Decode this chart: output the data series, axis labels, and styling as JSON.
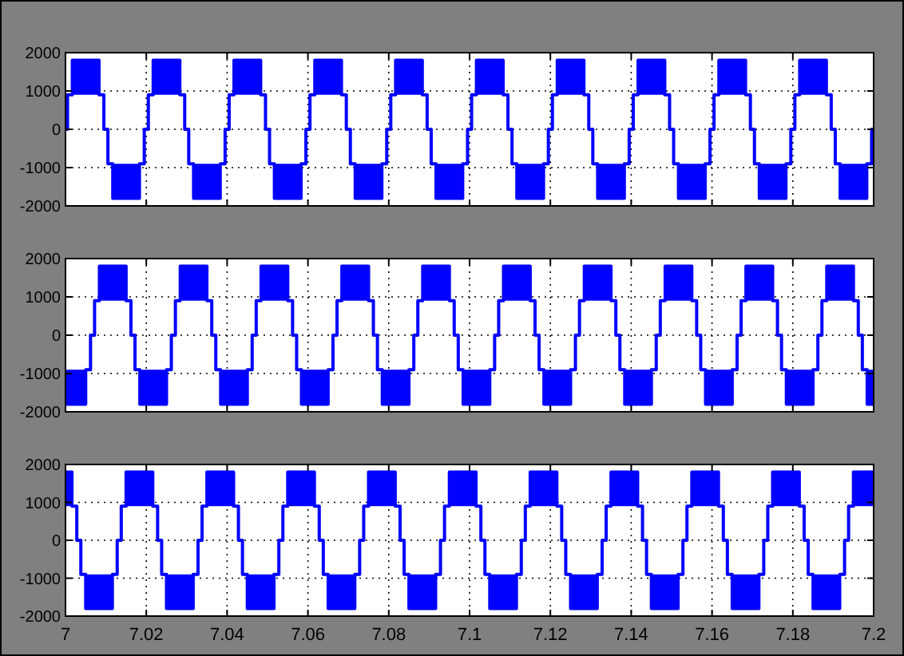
{
  "chart_data": [
    {
      "type": "step",
      "xlim": [
        7,
        7.2
      ],
      "xticks": [
        7,
        7.02,
        7.04,
        7.06,
        7.08,
        7.1,
        7.12,
        7.14,
        7.16,
        7.18,
        7.2
      ],
      "ylim": [
        -2000,
        2000
      ],
      "yticks": [
        -2000,
        -1000,
        0,
        1000,
        2000
      ],
      "grid": true,
      "tick_labels": "y",
      "series": [
        {
          "color": "#0000ff",
          "x": [
            7,
            7.0005,
            7.0017,
            7.0083,
            7.0083,
            7.0095,
            7.0105,
            7.0117,
            7.0183,
            7.0183,
            7.0195,
            7.0205,
            7.0217,
            7.0283,
            7.0283,
            7.0295,
            7.0305,
            7.0317,
            7.0383,
            7.0383,
            7.0395,
            7.0405,
            7.0417,
            7.0483,
            7.0483,
            7.0495,
            7.0505,
            7.0517,
            7.0583,
            7.0583,
            7.0595,
            7.0605,
            7.0617,
            7.0683,
            7.0683,
            7.0695,
            7.0705,
            7.0717,
            7.0783,
            7.0783,
            7.0795,
            7.0805,
            7.0817,
            7.0883,
            7.0883,
            7.0895,
            7.0905,
            7.0917,
            7.0983,
            7.0983,
            7.0995,
            7.1005,
            7.1017,
            7.1083,
            7.1083,
            7.1095,
            7.1105,
            7.1117,
            7.1183,
            7.1183,
            7.1195,
            7.1205,
            7.1217,
            7.1283,
            7.1283,
            7.1295,
            7.1305,
            7.1317,
            7.1383,
            7.1383,
            7.1395,
            7.1405,
            7.1417,
            7.1483,
            7.1483,
            7.1495,
            7.1505,
            7.1517,
            7.1583,
            7.1583,
            7.1595,
            7.1605,
            7.1617,
            7.1683,
            7.1683,
            7.1695,
            7.1705,
            7.1717,
            7.1783,
            7.1783,
            7.1795,
            7.1805,
            7.1817,
            7.1883,
            7.1883,
            7.1895,
            7.1905,
            7.1917,
            7.1983,
            7.1983,
            7.1995,
            7.2
          ],
          "values": [
            0,
            900,
            1800,
            1800,
            900,
            0,
            -900,
            -1800,
            -1800,
            -900,
            0,
            900,
            1800,
            1800,
            900,
            0,
            -900,
            -1800,
            -1800,
            -900,
            0,
            900,
            1800,
            1800,
            900,
            0,
            -900,
            -1800,
            -1800,
            -900,
            0,
            900,
            1800,
            1800,
            900,
            0,
            -900,
            -1800,
            -1800,
            -900,
            0,
            900,
            1800,
            1800,
            900,
            0,
            -900,
            -1800,
            -1800,
            -900,
            0,
            900,
            1800,
            1800,
            900,
            0,
            -900,
            -1800,
            -1800,
            -900,
            0,
            900,
            1800,
            1800,
            900,
            0,
            -900,
            -1800,
            -1800,
            -900,
            0,
            900,
            1800,
            1800,
            900,
            0,
            -900,
            -1800,
            -1800,
            -900,
            0,
            900,
            1800,
            1800,
            900,
            0,
            -900,
            -1800,
            -1800,
            -900,
            0,
            900,
            1800,
            1800,
            900,
            0,
            -900,
            -1800,
            -1800,
            -900,
            0,
            0
          ],
          "lower": [
            null,
            null,
            900,
            900,
            null,
            null,
            null,
            -1800,
            -1800,
            null,
            null,
            null,
            900,
            900,
            null,
            null,
            null,
            -1800,
            -1800,
            null,
            null,
            null,
            900,
            900,
            null,
            null,
            null,
            -1800,
            -1800,
            null,
            null,
            null,
            900,
            900,
            null,
            null,
            null,
            -1800,
            -1800,
            null,
            null,
            null,
            900,
            900,
            null,
            null,
            null,
            -1800,
            -1800,
            null,
            null,
            null,
            900,
            900,
            null,
            null,
            null,
            -1800,
            -1800,
            null,
            null,
            null,
            900,
            900,
            null,
            null,
            null,
            -1800,
            -1800,
            null,
            null,
            null,
            900,
            900,
            null,
            null,
            null,
            -1800,
            -1800,
            null,
            null,
            null,
            900,
            900,
            null,
            null,
            null,
            -1800,
            -1800,
            null,
            null,
            null,
            900,
            900,
            null,
            null,
            null,
            -1800,
            -1800,
            null,
            null,
            null
          ],
          "upper": [
            null,
            null,
            1800,
            1800,
            null,
            null,
            null,
            -900,
            -900,
            null,
            null,
            null,
            1800,
            1800,
            null,
            null,
            null,
            -900,
            -900,
            null,
            null,
            null,
            1800,
            1800,
            null,
            null,
            null,
            -900,
            -900,
            null,
            null,
            null,
            1800,
            1800,
            null,
            null,
            null,
            -900,
            -900,
            null,
            null,
            null,
            1800,
            1800,
            null,
            null,
            null,
            -900,
            -900,
            null,
            null,
            null,
            1800,
            1800,
            null,
            null,
            null,
            -900,
            -900,
            null,
            null,
            null,
            1800,
            1800,
            null,
            null,
            null,
            -900,
            -900,
            null,
            null,
            null,
            1800,
            1800,
            null,
            null,
            null,
            -900,
            -900,
            null,
            null,
            null,
            1800,
            1800,
            null,
            null,
            null,
            -900,
            -900,
            null,
            null,
            null,
            1800,
            1800,
            null,
            null,
            null,
            -900,
            -900,
            null,
            null,
            null
          ]
        }
      ]
    },
    {
      "type": "step",
      "xlim": [
        7,
        7.2
      ],
      "xticks": [
        7,
        7.02,
        7.04,
        7.06,
        7.08,
        7.1,
        7.12,
        7.14,
        7.16,
        7.18,
        7.2
      ],
      "ylim": [
        -2000,
        2000
      ],
      "yticks": [
        -2000,
        -1000,
        0,
        1000,
        2000
      ],
      "grid": true,
      "tick_labels": "y",
      "series": [
        {
          "color": "#0000ff",
          "x": [
            7,
            7.005,
            7.005,
            7.0062,
            7.0072,
            7.0084,
            7.015,
            7.015,
            7.0162,
            7.0172,
            7.0184,
            7.025,
            7.025,
            7.0262,
            7.0272,
            7.0284,
            7.035,
            7.035,
            7.0362,
            7.0372,
            7.0384,
            7.045,
            7.045,
            7.0462,
            7.0472,
            7.0484,
            7.055,
            7.055,
            7.0562,
            7.0572,
            7.0584,
            7.065,
            7.065,
            7.0662,
            7.0672,
            7.0684,
            7.075,
            7.075,
            7.0762,
            7.0772,
            7.0784,
            7.085,
            7.085,
            7.0862,
            7.0872,
            7.0884,
            7.095,
            7.095,
            7.0962,
            7.0972,
            7.0984,
            7.105,
            7.105,
            7.1062,
            7.1072,
            7.1084,
            7.115,
            7.115,
            7.1162,
            7.1172,
            7.1184,
            7.125,
            7.125,
            7.1262,
            7.1272,
            7.1284,
            7.135,
            7.135,
            7.1362,
            7.1372,
            7.1384,
            7.145,
            7.145,
            7.1462,
            7.1472,
            7.1484,
            7.155,
            7.155,
            7.1562,
            7.1572,
            7.1584,
            7.165,
            7.165,
            7.1662,
            7.1672,
            7.1684,
            7.175,
            7.175,
            7.1762,
            7.1772,
            7.1784,
            7.185,
            7.185,
            7.1862,
            7.1872,
            7.1884,
            7.195,
            7.195,
            7.1962,
            7.1972,
            7.1984,
            7.2
          ],
          "values": [
            -1800,
            -1800,
            -900,
            0,
            900,
            1800,
            1800,
            900,
            0,
            -900,
            -1800,
            -1800,
            -900,
            0,
            900,
            1800,
            1800,
            900,
            0,
            -900,
            -1800,
            -1800,
            -900,
            0,
            900,
            1800,
            1800,
            900,
            0,
            -900,
            -1800,
            -1800,
            -900,
            0,
            900,
            1800,
            1800,
            900,
            0,
            -900,
            -1800,
            -1800,
            -900,
            0,
            900,
            1800,
            1800,
            900,
            0,
            -900,
            -1800,
            -1800,
            -900,
            0,
            900,
            1800,
            1800,
            900,
            0,
            -900,
            -1800,
            -1800,
            -900,
            0,
            900,
            1800,
            1800,
            900,
            0,
            -900,
            -1800,
            -1800,
            -900,
            0,
            900,
            1800,
            1800,
            900,
            0,
            -900,
            -1800,
            -1800,
            -900,
            0,
            900,
            1800,
            1800,
            900,
            0,
            -900,
            -1800,
            -1800,
            -900,
            0,
            900,
            1800,
            1800,
            900,
            0,
            -900,
            -1800,
            -1800
          ],
          "lower": [
            -1800,
            -1800,
            null,
            null,
            null,
            900,
            900,
            null,
            null,
            null,
            -1800,
            -1800,
            null,
            null,
            null,
            900,
            900,
            null,
            null,
            null,
            -1800,
            -1800,
            null,
            null,
            null,
            900,
            900,
            null,
            null,
            null,
            -1800,
            -1800,
            null,
            null,
            null,
            900,
            900,
            null,
            null,
            null,
            -1800,
            -1800,
            null,
            null,
            null,
            900,
            900,
            null,
            null,
            null,
            -1800,
            -1800,
            null,
            null,
            null,
            900,
            900,
            null,
            null,
            null,
            -1800,
            -1800,
            null,
            null,
            null,
            900,
            900,
            null,
            null,
            null,
            -1800,
            -1800,
            null,
            null,
            null,
            900,
            900,
            null,
            null,
            null,
            -1800,
            -1800,
            null,
            null,
            null,
            900,
            900,
            null,
            null,
            null,
            -1800,
            -1800,
            null,
            null,
            null,
            900,
            900,
            null,
            null,
            null,
            -1800,
            -1800
          ],
          "upper": [
            -900,
            -900,
            null,
            null,
            null,
            1800,
            1800,
            null,
            null,
            null,
            -900,
            -900,
            null,
            null,
            null,
            1800,
            1800,
            null,
            null,
            null,
            -900,
            -900,
            null,
            null,
            null,
            1800,
            1800,
            null,
            null,
            null,
            -900,
            -900,
            null,
            null,
            null,
            1800,
            1800,
            null,
            null,
            null,
            -900,
            -900,
            null,
            null,
            null,
            1800,
            1800,
            null,
            null,
            null,
            -900,
            -900,
            null,
            null,
            null,
            1800,
            1800,
            null,
            null,
            null,
            -900,
            -900,
            null,
            null,
            null,
            1800,
            1800,
            null,
            null,
            null,
            -900,
            -900,
            null,
            null,
            null,
            1800,
            1800,
            null,
            null,
            null,
            -900,
            -900,
            null,
            null,
            null,
            1800,
            1800,
            null,
            null,
            null,
            -900,
            -900,
            null,
            null,
            null,
            1800,
            1800,
            null,
            null,
            null,
            -900,
            -900
          ]
        }
      ]
    },
    {
      "type": "step",
      "xlim": [
        7,
        7.2
      ],
      "xticks": [
        7,
        7.02,
        7.04,
        7.06,
        7.08,
        7.1,
        7.12,
        7.14,
        7.16,
        7.18,
        7.2
      ],
      "ylim": [
        -2000,
        2000
      ],
      "yticks": [
        -2000,
        -1000,
        0,
        1000,
        2000
      ],
      "grid": true,
      "series": [
        {
          "color": "#0000ff",
          "x": [
            7,
            7.0016,
            7.0016,
            7.0028,
            7.0038,
            7.005,
            7.0116,
            7.0116,
            7.0128,
            7.0138,
            7.015,
            7.0216,
            7.0216,
            7.0228,
            7.0238,
            7.025,
            7.0316,
            7.0316,
            7.0328,
            7.0338,
            7.035,
            7.0416,
            7.0416,
            7.0428,
            7.0438,
            7.045,
            7.0516,
            7.0516,
            7.0528,
            7.0538,
            7.055,
            7.0616,
            7.0616,
            7.0628,
            7.0638,
            7.065,
            7.0716,
            7.0716,
            7.0728,
            7.0738,
            7.075,
            7.0816,
            7.0816,
            7.0828,
            7.0838,
            7.085,
            7.0916,
            7.0916,
            7.0928,
            7.0938,
            7.095,
            7.1016,
            7.1016,
            7.1028,
            7.1038,
            7.105,
            7.1116,
            7.1116,
            7.1128,
            7.1138,
            7.115,
            7.1216,
            7.1216,
            7.1228,
            7.1238,
            7.125,
            7.1316,
            7.1316,
            7.1328,
            7.1338,
            7.135,
            7.1416,
            7.1416,
            7.1428,
            7.1438,
            7.145,
            7.1516,
            7.1516,
            7.1528,
            7.1538,
            7.155,
            7.1616,
            7.1616,
            7.1628,
            7.1638,
            7.165,
            7.1716,
            7.1716,
            7.1728,
            7.1738,
            7.175,
            7.1816,
            7.1816,
            7.1828,
            7.1838,
            7.185,
            7.1916,
            7.1916,
            7.1928,
            7.1938,
            7.195,
            7.2
          ],
          "values": [
            1800,
            1800,
            900,
            0,
            -900,
            -1800,
            -1800,
            -900,
            0,
            900,
            1800,
            1800,
            900,
            0,
            -900,
            -1800,
            -1800,
            -900,
            0,
            900,
            1800,
            1800,
            900,
            0,
            -900,
            -1800,
            -1800,
            -900,
            0,
            900,
            1800,
            1800,
            900,
            0,
            -900,
            -1800,
            -1800,
            -900,
            0,
            900,
            1800,
            1800,
            900,
            0,
            -900,
            -1800,
            -1800,
            -900,
            0,
            900,
            1800,
            1800,
            900,
            0,
            -900,
            -1800,
            -1800,
            -900,
            0,
            900,
            1800,
            1800,
            900,
            0,
            -900,
            -1800,
            -1800,
            -900,
            0,
            900,
            1800,
            1800,
            900,
            0,
            -900,
            -1800,
            -1800,
            -900,
            0,
            900,
            1800,
            1800,
            900,
            0,
            -900,
            -1800,
            -1800,
            -900,
            0,
            900,
            1800,
            1800,
            900,
            0,
            -900,
            -1800,
            -1800,
            -900,
            0,
            900,
            1800,
            1800
          ],
          "lower": [
            900,
            900,
            null,
            null,
            null,
            -1800,
            -1800,
            null,
            null,
            null,
            900,
            900,
            null,
            null,
            null,
            -1800,
            -1800,
            null,
            null,
            null,
            900,
            900,
            null,
            null,
            null,
            -1800,
            -1800,
            null,
            null,
            null,
            900,
            900,
            null,
            null,
            null,
            -1800,
            -1800,
            null,
            null,
            null,
            900,
            900,
            null,
            null,
            null,
            -1800,
            -1800,
            null,
            null,
            null,
            900,
            900,
            null,
            null,
            null,
            -1800,
            -1800,
            null,
            null,
            null,
            900,
            900,
            null,
            null,
            null,
            -1800,
            -1800,
            null,
            null,
            null,
            900,
            900,
            null,
            null,
            null,
            -1800,
            -1800,
            null,
            null,
            null,
            900,
            900,
            null,
            null,
            null,
            -1800,
            -1800,
            null,
            null,
            null,
            900,
            900,
            null,
            null,
            null,
            -1800,
            -1800,
            null,
            null,
            null,
            900,
            900
          ],
          "upper": [
            1800,
            1800,
            null,
            null,
            null,
            -900,
            -900,
            null,
            null,
            null,
            1800,
            1800,
            null,
            null,
            null,
            -900,
            -900,
            null,
            null,
            null,
            1800,
            1800,
            null,
            null,
            null,
            -900,
            -900,
            null,
            null,
            null,
            1800,
            1800,
            null,
            null,
            null,
            -900,
            -900,
            null,
            null,
            null,
            1800,
            1800,
            null,
            null,
            null,
            -900,
            -900,
            null,
            null,
            null,
            1800,
            1800,
            null,
            null,
            null,
            -900,
            -900,
            null,
            null,
            null,
            1800,
            1800,
            null,
            null,
            null,
            -900,
            -900,
            null,
            null,
            null,
            1800,
            1800,
            null,
            null,
            null,
            -900,
            -900,
            null,
            null,
            null,
            1800,
            1800,
            null,
            null,
            null,
            -900,
            -900,
            null,
            null,
            null,
            1800,
            1800,
            null,
            null,
            null,
            -900,
            -900,
            null,
            null,
            null,
            1800,
            1800
          ]
        }
      ]
    }
  ]
}
